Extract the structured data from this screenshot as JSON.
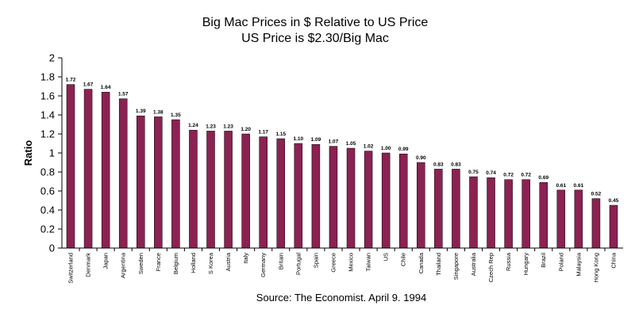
{
  "chart_data": {
    "type": "bar",
    "title": "Big Mac Prices in $ Relative to US Price",
    "subtitle": "US Price is $2.30/Big Mac",
    "xlabel": "",
    "ylabel": "Ratio",
    "ylim": [
      0,
      2
    ],
    "yticks": [
      "0",
      "0.2",
      "0.4",
      "0.6",
      "0.8",
      "1",
      "1.2",
      "1.4",
      "1.6",
      "1.8",
      "2"
    ],
    "grid": false,
    "source": "Source: The Economist. April 9. 1994",
    "bar_color": "#8b2252",
    "categories": [
      "Switzerland",
      "Denmark",
      "Japan",
      "Argentina",
      "Sweden",
      "France",
      "Belgium",
      "Holland",
      "S Korea",
      "Austria",
      "Italy",
      "Germany",
      "Britain",
      "Portugal",
      "Spain",
      "Greece",
      "Mexico",
      "Taiwan",
      "US",
      "Chile",
      "Canada",
      "Thailand",
      "Singapore",
      "Australia",
      "Czech Rep",
      "Russia",
      "Hungary",
      "Brazil",
      "Poland",
      "Malaysia",
      "Hong Kong",
      "China"
    ],
    "values": [
      1.72,
      1.67,
      1.64,
      1.57,
      1.39,
      1.38,
      1.35,
      1.24,
      1.23,
      1.23,
      1.2,
      1.17,
      1.15,
      1.1,
      1.09,
      1.07,
      1.05,
      1.02,
      1.0,
      0.99,
      0.9,
      0.83,
      0.83,
      0.75,
      0.74,
      0.72,
      0.72,
      0.69,
      0.61,
      0.61,
      0.52,
      0.45
    ],
    "value_labels": [
      "1.72",
      "1.67",
      "1.64",
      "1.57",
      "1.39",
      "1.38",
      "1.35",
      "1.24",
      "1.23",
      "1.23",
      "1.20",
      "1.17",
      "1.15",
      "1.10",
      "1.09",
      "1.07",
      "1.05",
      "1.02",
      "1.00",
      "0.99",
      "0.90",
      "0.83",
      "0.83",
      "0.75",
      "0.74",
      "0.72",
      "0.72",
      "0.69",
      "0.61",
      "0.61",
      "0.52",
      "0.45"
    ]
  }
}
